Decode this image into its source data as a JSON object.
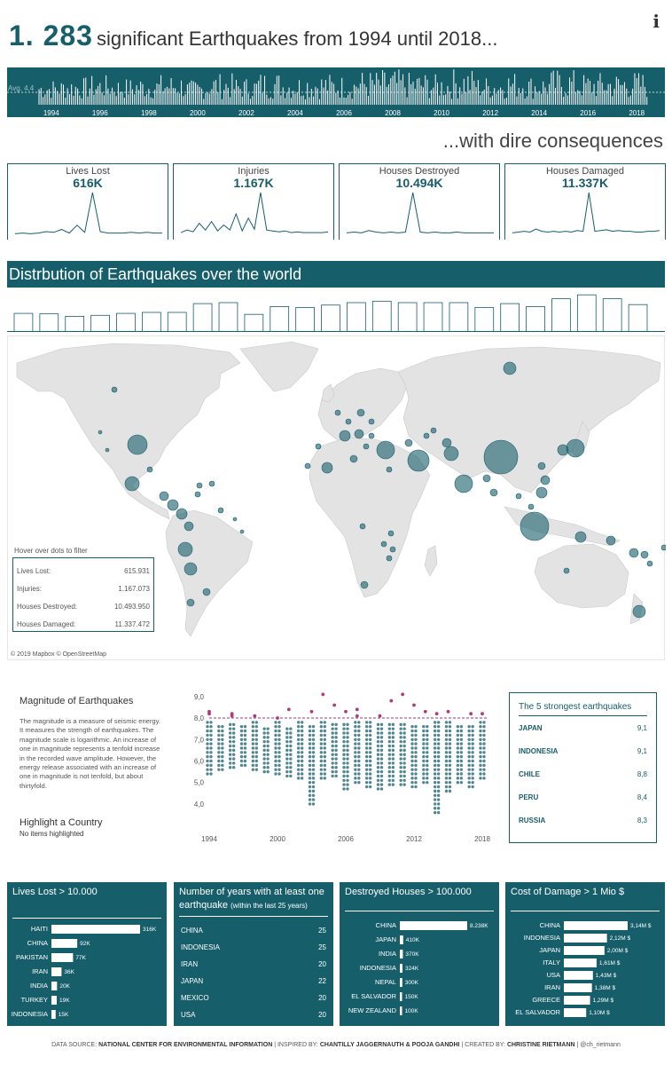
{
  "header": {
    "title_big": "1. 283",
    "title_rest": "significant Earthquakes from 1994 until 2018...",
    "info_icon": "info-icon",
    "subtitle": "...with dire consequences"
  },
  "timeline": {
    "avg_label": "Avg. 4,4",
    "years": [
      "1994",
      "1996",
      "1998",
      "2000",
      "2002",
      "2004",
      "2006",
      "2008",
      "2010",
      "2012",
      "2014",
      "2016",
      "2018"
    ]
  },
  "kpis": [
    {
      "title": "Lives Lost",
      "value": "616K",
      "series": [
        2,
        3,
        2,
        3,
        5,
        4,
        8,
        3,
        14,
        4,
        60,
        5,
        3,
        3,
        3,
        4,
        3,
        4,
        3,
        3
      ]
    },
    {
      "title": "Injuries",
      "value": "1.167K",
      "series": [
        3,
        6,
        4,
        14,
        6,
        16,
        5,
        12,
        6,
        25,
        5,
        20,
        7,
        50,
        6,
        5,
        4,
        5,
        3,
        4,
        3,
        3,
        3,
        3,
        4
      ]
    },
    {
      "title": "Houses Destroyed",
      "value": "10.494K",
      "series": [
        3,
        4,
        3,
        6,
        4,
        3,
        4,
        3,
        4,
        55,
        4,
        3,
        4,
        3,
        3,
        4,
        3,
        3,
        3,
        3,
        3
      ]
    },
    {
      "title": "Houses Damaged",
      "value": "11.337K",
      "series": [
        3,
        4,
        5,
        4,
        8,
        5,
        4,
        5,
        4,
        5,
        4,
        6,
        5,
        55,
        5,
        6,
        7,
        5,
        6,
        5,
        5,
        4,
        4,
        5,
        5,
        6
      ]
    }
  ],
  "distribution": {
    "title": "Distrbution of Earthquakes over the world",
    "hover_note": "Hover over dots to filter",
    "stats": [
      {
        "label": "Lives Lost:",
        "value": "615.931"
      },
      {
        "label": "Injuries:",
        "value": "1.167.073"
      },
      {
        "label": "Houses Destroyed:",
        "value": "10.493.950"
      },
      {
        "label": "Houses Damaged:",
        "value": "11.337.472"
      }
    ],
    "credit": "© 2019 Mapbox © OpenStreetMap",
    "colors": {
      "bubble": "#175e6b",
      "land": "#e3e3e3"
    }
  },
  "magnitude": {
    "title": "Magnitude of Earthquakes",
    "description": "The magnitude is a measure of seismic energy. It measures the strength of earthquakes.  The magnitude scale is logarithmic. An increase of one in magnitude represents a tenfold increase in the recorded wave amplitude. However, the energy release associated with an increase of one in magnitude is not tenfold, but about thirtyfold.",
    "highlight_title": "Highlight  a Country",
    "highlight_value": "No items highlighted"
  },
  "top5": {
    "title": "The 5 strongest earthquakes",
    "rows": [
      {
        "country": "JAPAN",
        "value": "9,1"
      },
      {
        "country": "INDONESIA",
        "value": "9,1"
      },
      {
        "country": "CHILE",
        "value": "8,8"
      },
      {
        "country": "PERU",
        "value": "8,4"
      },
      {
        "country": "RUSSIA",
        "value": "8,3"
      }
    ]
  },
  "panels": {
    "lives": {
      "title": "Lives Lost > 10.000"
    },
    "years": {
      "title": "Number of years with at least one earthquake",
      "subtitle": "(within the last 25 years)",
      "rows": [
        {
          "country": "CHINA",
          "value": "25"
        },
        {
          "country": "INDONESIA",
          "value": "25"
        },
        {
          "country": "IRAN",
          "value": "20"
        },
        {
          "country": "JAPAN",
          "value": "22"
        },
        {
          "country": "MEXICO",
          "value": "20"
        },
        {
          "country": "USA",
          "value": "20"
        }
      ]
    },
    "houses": {
      "title": "Destroyed Houses > 100.000"
    },
    "cost": {
      "title": "Cost of Damage > 1 Mio $"
    }
  },
  "footer": {
    "p1": "DATA SOURCE:",
    "b1": "NATIONAL CENTER FOR ENVIRONMENTAL INFORMATION",
    "p2": "| INSPIRED BY:",
    "b2": "CHANTILLY JAGGERNAUTH & POOJA GANDHI",
    "p3": "| CREATED BY:",
    "b3": "CHRISTINE RIETMANN",
    "p4": "| @ch_rietmann"
  },
  "chart_data": [
    {
      "type": "bar",
      "name": "timeline",
      "categories": [
        "1994",
        "1995",
        "1996",
        "1997",
        "1998",
        "1999",
        "2000",
        "2001",
        "2002",
        "2003",
        "2004",
        "2005",
        "2006",
        "2007",
        "2008",
        "2009",
        "2010",
        "2011",
        "2012",
        "2013",
        "2014",
        "2015",
        "2016",
        "2017",
        "2018"
      ],
      "values": [
        42,
        46,
        50,
        44,
        48,
        52,
        40,
        54,
        46,
        58,
        50,
        54,
        50,
        60,
        62,
        56,
        52,
        64,
        48,
        58,
        50,
        62,
        54,
        56,
        58
      ],
      "reference_line": {
        "label": "Avg. 4,4",
        "value": 4.4
      },
      "x_tick_labels": [
        "1994",
        "1996",
        "1998",
        "2000",
        "2002",
        "2004",
        "2006",
        "2008",
        "2010",
        "2012",
        "2014",
        "2016",
        "2018"
      ]
    },
    {
      "type": "bar",
      "name": "earthquakes_per_year",
      "categories": [
        "1994",
        "1995",
        "1996",
        "1997",
        "1998",
        "1999",
        "2000",
        "2001",
        "2002",
        "2003",
        "2004",
        "2005",
        "2006",
        "2007",
        "2008",
        "2009",
        "2010",
        "2011",
        "2012",
        "2013",
        "2014",
        "2015",
        "2016",
        "2017",
        "2018"
      ],
      "values": [
        38,
        37,
        32,
        34,
        38,
        40,
        40,
        58,
        60,
        36,
        52,
        50,
        55,
        60,
        63,
        60,
        60,
        60,
        50,
        58,
        52,
        68,
        76,
        68,
        56
      ],
      "ylim": [
        0,
        80
      ]
    },
    {
      "type": "scatter",
      "name": "magnitude_by_year",
      "xticks": [
        "1994",
        "2000",
        "2006",
        "2012",
        "2018"
      ],
      "yticks": [
        "9,0",
        "8,0",
        "7,0",
        "6,0",
        "5,0",
        "4,0"
      ],
      "ylim": [
        3.5,
        9.2
      ],
      "reference_line": 8.0,
      "colors": {
        "normal": "#175e6b",
        "strong": "#b03a7a",
        "ref": "#9b3b7a"
      },
      "strong_points": [
        [
          1994,
          8.2
        ],
        [
          1994,
          8.3
        ],
        [
          1996,
          8.1
        ],
        [
          1996,
          8.2
        ],
        [
          1998,
          8.1
        ],
        [
          2000,
          8.0
        ],
        [
          2001,
          8.4
        ],
        [
          2003,
          8.3
        ],
        [
          2004,
          9.1
        ],
        [
          2005,
          8.6
        ],
        [
          2006,
          8.3
        ],
        [
          2007,
          8.4
        ],
        [
          2007,
          8.1
        ],
        [
          2009,
          8.1
        ],
        [
          2010,
          8.8
        ],
        [
          2011,
          9.1
        ],
        [
          2012,
          8.6
        ],
        [
          2013,
          8.3
        ],
        [
          2014,
          8.2
        ],
        [
          2015,
          8.3
        ],
        [
          2017,
          8.2
        ],
        [
          2018,
          8.2
        ]
      ],
      "ranges": [
        [
          1994,
          5.4,
          8.0
        ],
        [
          1995,
          5.6,
          7.8
        ],
        [
          1996,
          5.7,
          7.9
        ],
        [
          1997,
          5.8,
          7.7
        ],
        [
          1998,
          5.6,
          7.9
        ],
        [
          1999,
          5.5,
          7.6
        ],
        [
          2000,
          5.4,
          7.9
        ],
        [
          2001,
          5.3,
          7.7
        ],
        [
          2002,
          5.2,
          7.9
        ],
        [
          2003,
          4.0,
          7.8
        ],
        [
          2004,
          5.2,
          7.9
        ],
        [
          2005,
          5.3,
          7.8
        ],
        [
          2006,
          4.7,
          7.9
        ],
        [
          2007,
          5.0,
          7.9
        ],
        [
          2008,
          4.8,
          7.9
        ],
        [
          2009,
          4.7,
          7.8
        ],
        [
          2010,
          4.9,
          7.9
        ],
        [
          2011,
          4.9,
          7.8
        ],
        [
          2012,
          4.8,
          7.8
        ],
        [
          2013,
          5.0,
          7.8
        ],
        [
          2014,
          3.6,
          7.9
        ],
        [
          2015,
          4.6,
          7.9
        ],
        [
          2016,
          5.0,
          7.8
        ],
        [
          2017,
          4.8,
          7.8
        ],
        [
          2018,
          5.2,
          7.9
        ]
      ]
    },
    {
      "type": "bar",
      "name": "lives_lost_gt_10000",
      "categories": [
        "HAITI",
        "CHINA",
        "PAKISTAN",
        "IRAN",
        "INDIA",
        "TURKEY",
        "INDONESIA"
      ],
      "labels": [
        "316K",
        "92K",
        "77K",
        "36K",
        "20K",
        "19K",
        "15K"
      ],
      "values": [
        316,
        92,
        77,
        36,
        20,
        19,
        15
      ]
    },
    {
      "type": "bar",
      "name": "destroyed_houses_gt_100000",
      "categories": [
        "CHINA",
        "JAPAN",
        "INDIA",
        "INDONESIA",
        "NEPAL",
        "EL SALVADOR",
        "NEW ZEALAND"
      ],
      "labels": [
        "8.238K",
        "410K",
        "370K",
        "324K",
        "300K",
        "150K",
        "100K"
      ],
      "values": [
        8238,
        410,
        370,
        324,
        300,
        150,
        100
      ]
    },
    {
      "type": "bar",
      "name": "cost_of_damage_gt_1mio",
      "categories": [
        "CHINA",
        "INDONESIA",
        "JAPAN",
        "ITALY",
        "USA",
        "IRAN",
        "GREECE",
        "EL SALVADOR"
      ],
      "labels": [
        "3,14M $",
        "2,12M $",
        "2,00M $",
        "1,61M $",
        "1,43M $",
        "1,38M $",
        "1,29M $",
        "1,10M $"
      ],
      "values": [
        3.14,
        2.12,
        2.0,
        1.61,
        1.43,
        1.38,
        1.29,
        1.1
      ]
    }
  ]
}
